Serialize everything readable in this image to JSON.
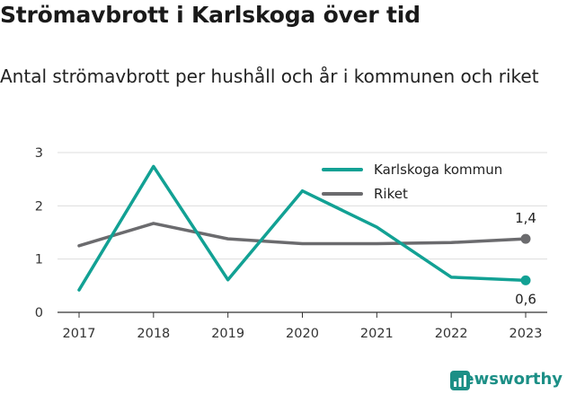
{
  "title": "Strömavbrott i Karlskoga över tid",
  "subtitle": "Antal strömavbrott per hushåll och år i kommunen och riket",
  "brand": {
    "name": "Newsworthy",
    "icon": "newsworthy-logo-icon",
    "color": "#1c8f86"
  },
  "chart_data": {
    "type": "line",
    "categories": [
      "2017",
      "2018",
      "2019",
      "2020",
      "2021",
      "2022",
      "2023"
    ],
    "ylim": [
      0,
      3
    ],
    "yticks": [
      "0",
      "1",
      "2",
      "3"
    ],
    "grid": true,
    "legend_position": "top-right",
    "series": [
      {
        "name": "Karlskoga kommun",
        "color": "#12a194",
        "values": [
          0.42,
          2.74,
          0.61,
          2.28,
          1.6,
          0.66,
          0.6
        ],
        "end_label": "0,6"
      },
      {
        "name": "Riket",
        "color": "#6b6b6e",
        "values": [
          1.25,
          1.67,
          1.38,
          1.29,
          1.29,
          1.31,
          1.38
        ],
        "end_label": "1,4"
      }
    ]
  }
}
